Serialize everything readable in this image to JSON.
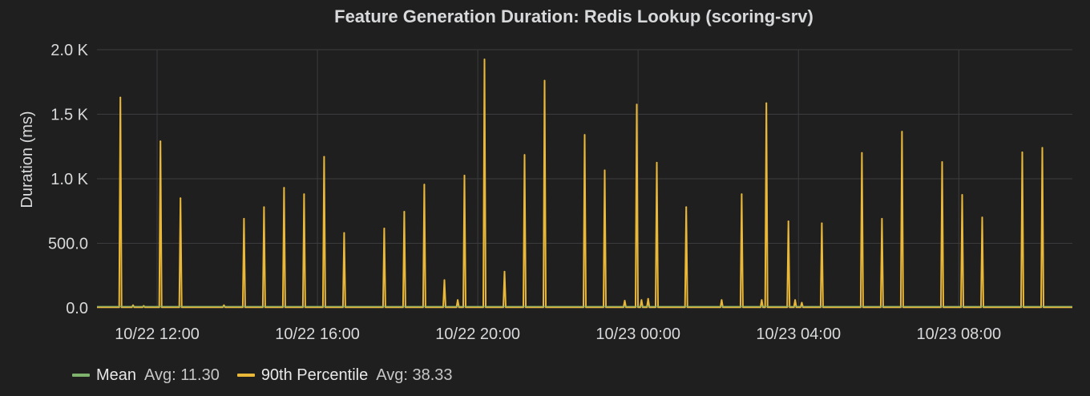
{
  "panel": {
    "title": "Feature Generation Duration: Redis Lookup (scoring-srv)"
  },
  "chart_data": {
    "type": "line",
    "title": "Feature Generation Duration: Redis Lookup (scoring-srv)",
    "ylabel": "Duration (ms)",
    "ylim": [
      0,
      2000
    ],
    "xlim": [
      "10/22 10:30",
      "10/23 10:50"
    ],
    "y_ticks": [
      {
        "value": 0,
        "label": "0.0"
      },
      {
        "value": 500,
        "label": "500.0"
      },
      {
        "value": 1000,
        "label": "1.0 K"
      },
      {
        "value": 1500,
        "label": "1.5 K"
      },
      {
        "value": 2000,
        "label": "2.0 K"
      }
    ],
    "x_ticks": [
      {
        "value": "10/22 12:00",
        "label": "10/22 12:00"
      },
      {
        "value": "10/22 16:00",
        "label": "10/22 16:00"
      },
      {
        "value": "10/22 20:00",
        "label": "10/22 20:00"
      },
      {
        "value": "10/23 00:00",
        "label": "10/23 00:00"
      },
      {
        "value": "10/23 04:00",
        "label": "10/23 04:00"
      },
      {
        "value": "10/23 08:00",
        "label": "10/23 08:00"
      }
    ],
    "grid": true,
    "legend_position": "bottom",
    "series": [
      {
        "name": "Mean",
        "stat_label": "Avg: 11.30",
        "color": "#7eb26d",
        "baseline": 11.3,
        "points": []
      },
      {
        "name": "90th Percentile",
        "stat_label": "Avg: 38.33",
        "color": "#eab839",
        "baseline": 5,
        "points": [
          [
            "10/22 11:05",
            1630
          ],
          [
            "10/22 11:24",
            20
          ],
          [
            "10/22 11:40",
            15
          ],
          [
            "10/22 12:05",
            1290
          ],
          [
            "10/22 12:35",
            850
          ],
          [
            "10/22 13:40",
            20
          ],
          [
            "10/22 14:10",
            690
          ],
          [
            "10/22 14:40",
            780
          ],
          [
            "10/22 15:10",
            930
          ],
          [
            "10/22 15:40",
            880
          ],
          [
            "10/22 16:10",
            1170
          ],
          [
            "10/22 16:40",
            580
          ],
          [
            "10/22 17:40",
            615
          ],
          [
            "10/22 18:10",
            745
          ],
          [
            "10/22 18:40",
            955
          ],
          [
            "10/22 19:10",
            215
          ],
          [
            "10/22 19:30",
            60
          ],
          [
            "10/22 19:40",
            1025
          ],
          [
            "10/22 20:10",
            1925
          ],
          [
            "10/22 20:40",
            280
          ],
          [
            "10/22 21:10",
            1185
          ],
          [
            "10/22 21:40",
            1760
          ],
          [
            "10/22 22:40",
            1340
          ],
          [
            "10/22 23:10",
            1065
          ],
          [
            "10/22 23:40",
            55
          ],
          [
            "10/22 23:58",
            1575
          ],
          [
            "10/23 00:05",
            60
          ],
          [
            "10/23 00:15",
            70
          ],
          [
            "10/23 00:28",
            1125
          ],
          [
            "10/23 01:12",
            780
          ],
          [
            "10/23 02:05",
            60
          ],
          [
            "10/23 02:35",
            880
          ],
          [
            "10/23 03:05",
            60
          ],
          [
            "10/23 03:12",
            1585
          ],
          [
            "10/23 03:45",
            670
          ],
          [
            "10/23 03:55",
            60
          ],
          [
            "10/23 04:05",
            40
          ],
          [
            "10/23 04:35",
            655
          ],
          [
            "10/23 05:35",
            1200
          ],
          [
            "10/23 06:05",
            690
          ],
          [
            "10/23 06:35",
            1365
          ],
          [
            "10/23 07:35",
            1130
          ],
          [
            "10/23 08:05",
            875
          ],
          [
            "10/23 08:35",
            700
          ],
          [
            "10/23 09:35",
            1205
          ],
          [
            "10/23 10:05",
            1240
          ]
        ]
      }
    ]
  }
}
